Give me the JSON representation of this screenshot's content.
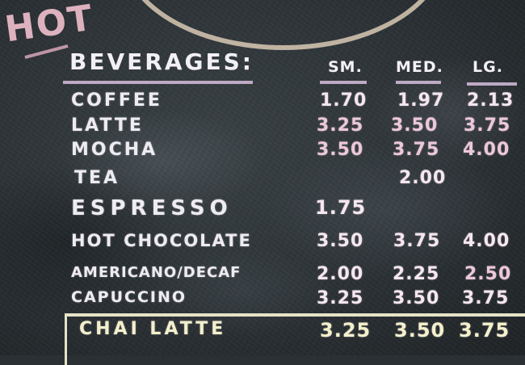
{
  "heading": {
    "hot": "HOT",
    "title": "BEVERAGES:"
  },
  "columns": [
    "SM.",
    "MED.",
    "LG."
  ],
  "items": [
    {
      "name": "COFFEE",
      "sm": "1.70",
      "med": "1.97",
      "lg": "2.13"
    },
    {
      "name": "LATTE",
      "sm": "3.25",
      "med": "3.50",
      "lg": "3.75"
    },
    {
      "name": "MOCHA",
      "sm": "3.50",
      "med": "3.75",
      "lg": "4.00"
    },
    {
      "name": "TEA",
      "sm": "",
      "med": "2.00",
      "lg": ""
    },
    {
      "name": "ESPRESSO",
      "sm": "1.75",
      "med": "",
      "lg": ""
    },
    {
      "name": "HOT CHOCOLATE",
      "sm": "3.50",
      "med": "3.75",
      "lg": "4.00"
    },
    {
      "name": "AMERICANO/DECAF",
      "sm": "2.00",
      "med": "2.25",
      "lg": "2.50"
    },
    {
      "name": "CAPUCCINO",
      "sm": "3.25",
      "med": "3.50",
      "lg": "3.75"
    },
    {
      "name": "CHAI LATTE",
      "sm": "3.25",
      "med": "3.50",
      "lg": "3.75"
    }
  ],
  "colors": {
    "board": "#2b3034",
    "chalk": "#eae6f1",
    "pink_chalk": "#e8c3d6",
    "yellow_chalk": "#f1edc8"
  }
}
